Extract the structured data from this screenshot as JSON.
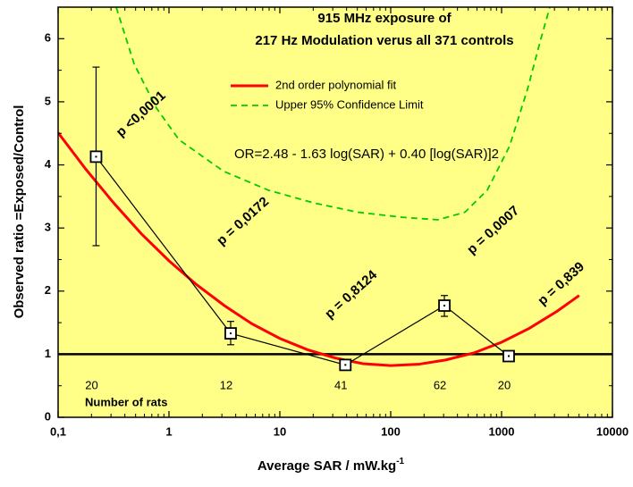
{
  "chart_data": {
    "type": "line",
    "title": [
      "915 MHz exposure of",
      "217 Hz Modulation verus all 371 controls"
    ],
    "x_label": "Average SAR / mW.kg",
    "x_label_superscript": "-1",
    "y_label": "Observed ratio =Exposed/Control",
    "xscale": "log",
    "xlim": [
      0.1,
      10000
    ],
    "xticks": [
      {
        "value": 0.1,
        "label": "0,1"
      },
      1,
      10,
      100,
      1000,
      10000
    ],
    "ylim": [
      0,
      6.5
    ],
    "yticks": [
      0,
      1,
      2,
      3,
      4,
      5,
      6
    ],
    "background": "#ffff88",
    "reference_line": 1,
    "formula": "OR=2.48 - 1.63 log(SAR) + 0.40 [log(SAR)]2",
    "counts_label": "Number of rats",
    "series": [
      {
        "name": "2nd order polynomial fit",
        "color": "#ff0000",
        "style": "solid",
        "x": [
          0.1,
          0.178,
          0.316,
          0.562,
          1,
          1.78,
          3.16,
          5.62,
          10,
          17.8,
          31.6,
          56.2,
          100,
          178,
          316,
          562,
          1000,
          1778,
          3162,
          5012
        ],
        "values": [
          4.51,
          3.93,
          3.4,
          2.91,
          2.48,
          2.1,
          1.77,
          1.48,
          1.25,
          1.07,
          0.94,
          0.85,
          0.82,
          0.84,
          0.91,
          1.02,
          1.19,
          1.41,
          1.68,
          1.93
        ]
      },
      {
        "name": "Upper 95% Confidence Limit",
        "color": "#00cc00",
        "style": "dashed",
        "x": [
          0.334,
          0.485,
          0.771,
          1.23,
          3.1,
          7.86,
          19.9,
          50.3,
          127,
          267,
          467,
          743,
          1182,
          1714,
          2264,
          2725
        ],
        "values": [
          6.5,
          5.6,
          4.9,
          4.4,
          3.9,
          3.6,
          3.4,
          3.25,
          3.17,
          3.13,
          3.25,
          3.6,
          4.3,
          5.2,
          6.0,
          6.5
        ]
      },
      {
        "color": "#000000",
        "style": "marker",
        "x": [
          0.22,
          3.6,
          39,
          305,
          1160
        ],
        "values": [
          4.13,
          1.33,
          0.83,
          1.77,
          0.97
        ],
        "lower": [
          2.72,
          1.15,
          0.77,
          1.6,
          0.92
        ],
        "upper": [
          5.55,
          1.52,
          0.9,
          1.93,
          1.02
        ],
        "point_labels": [
          "p <0,0001",
          "p = 0,0172",
          "p = 0,8124",
          "p = 0,0007",
          "p = 0,839"
        ],
        "counts": [
          20,
          12,
          41,
          62,
          20
        ]
      }
    ]
  }
}
